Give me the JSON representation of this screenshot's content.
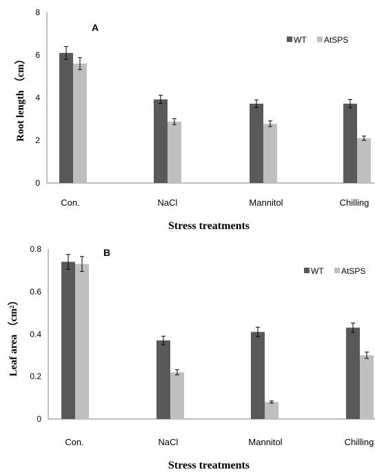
{
  "colors": {
    "WT": "#595959",
    "AtSPS": "#bfbfbf"
  },
  "chart_data": [
    {
      "type": "bar",
      "panel_label": "A",
      "categories": [
        "Con.",
        "NaCl",
        "Mannitol",
        "Chilling"
      ],
      "series": [
        {
          "name": "WT",
          "values": [
            6.1,
            3.92,
            3.72,
            3.72
          ],
          "errors": [
            0.3,
            0.2,
            0.18,
            0.2
          ]
        },
        {
          "name": "AtSPS",
          "values": [
            5.6,
            2.88,
            2.78,
            2.1
          ],
          "errors": [
            0.28,
            0.14,
            0.13,
            0.1
          ]
        }
      ],
      "xlabel": "Stress treatments",
      "ylabel": "Root  length （cm）",
      "ylim": [
        0,
        8
      ],
      "yticks": [
        "0",
        "2",
        "4",
        "6",
        "8"
      ],
      "legend_position": "top-right",
      "grid": false
    },
    {
      "type": "bar",
      "panel_label": "B",
      "categories": [
        "Con.",
        "NaCl",
        "Mannitol",
        "Chilling"
      ],
      "series": [
        {
          "name": "WT",
          "values": [
            0.74,
            0.37,
            0.41,
            0.43
          ],
          "errors": [
            0.035,
            0.02,
            0.022,
            0.022
          ]
        },
        {
          "name": "AtSPS",
          "values": [
            0.73,
            0.22,
            0.08,
            0.3
          ],
          "errors": [
            0.035,
            0.012,
            0.005,
            0.015
          ]
        }
      ],
      "xlabel": "Stress treatments",
      "ylabel": "Leaf area （cm²）",
      "ylim": [
        0,
        0.8
      ],
      "yticks": [
        "0",
        "0.2",
        "0.4",
        "0.6",
        "0.8"
      ],
      "legend_position": "top-right",
      "grid": false
    }
  ]
}
